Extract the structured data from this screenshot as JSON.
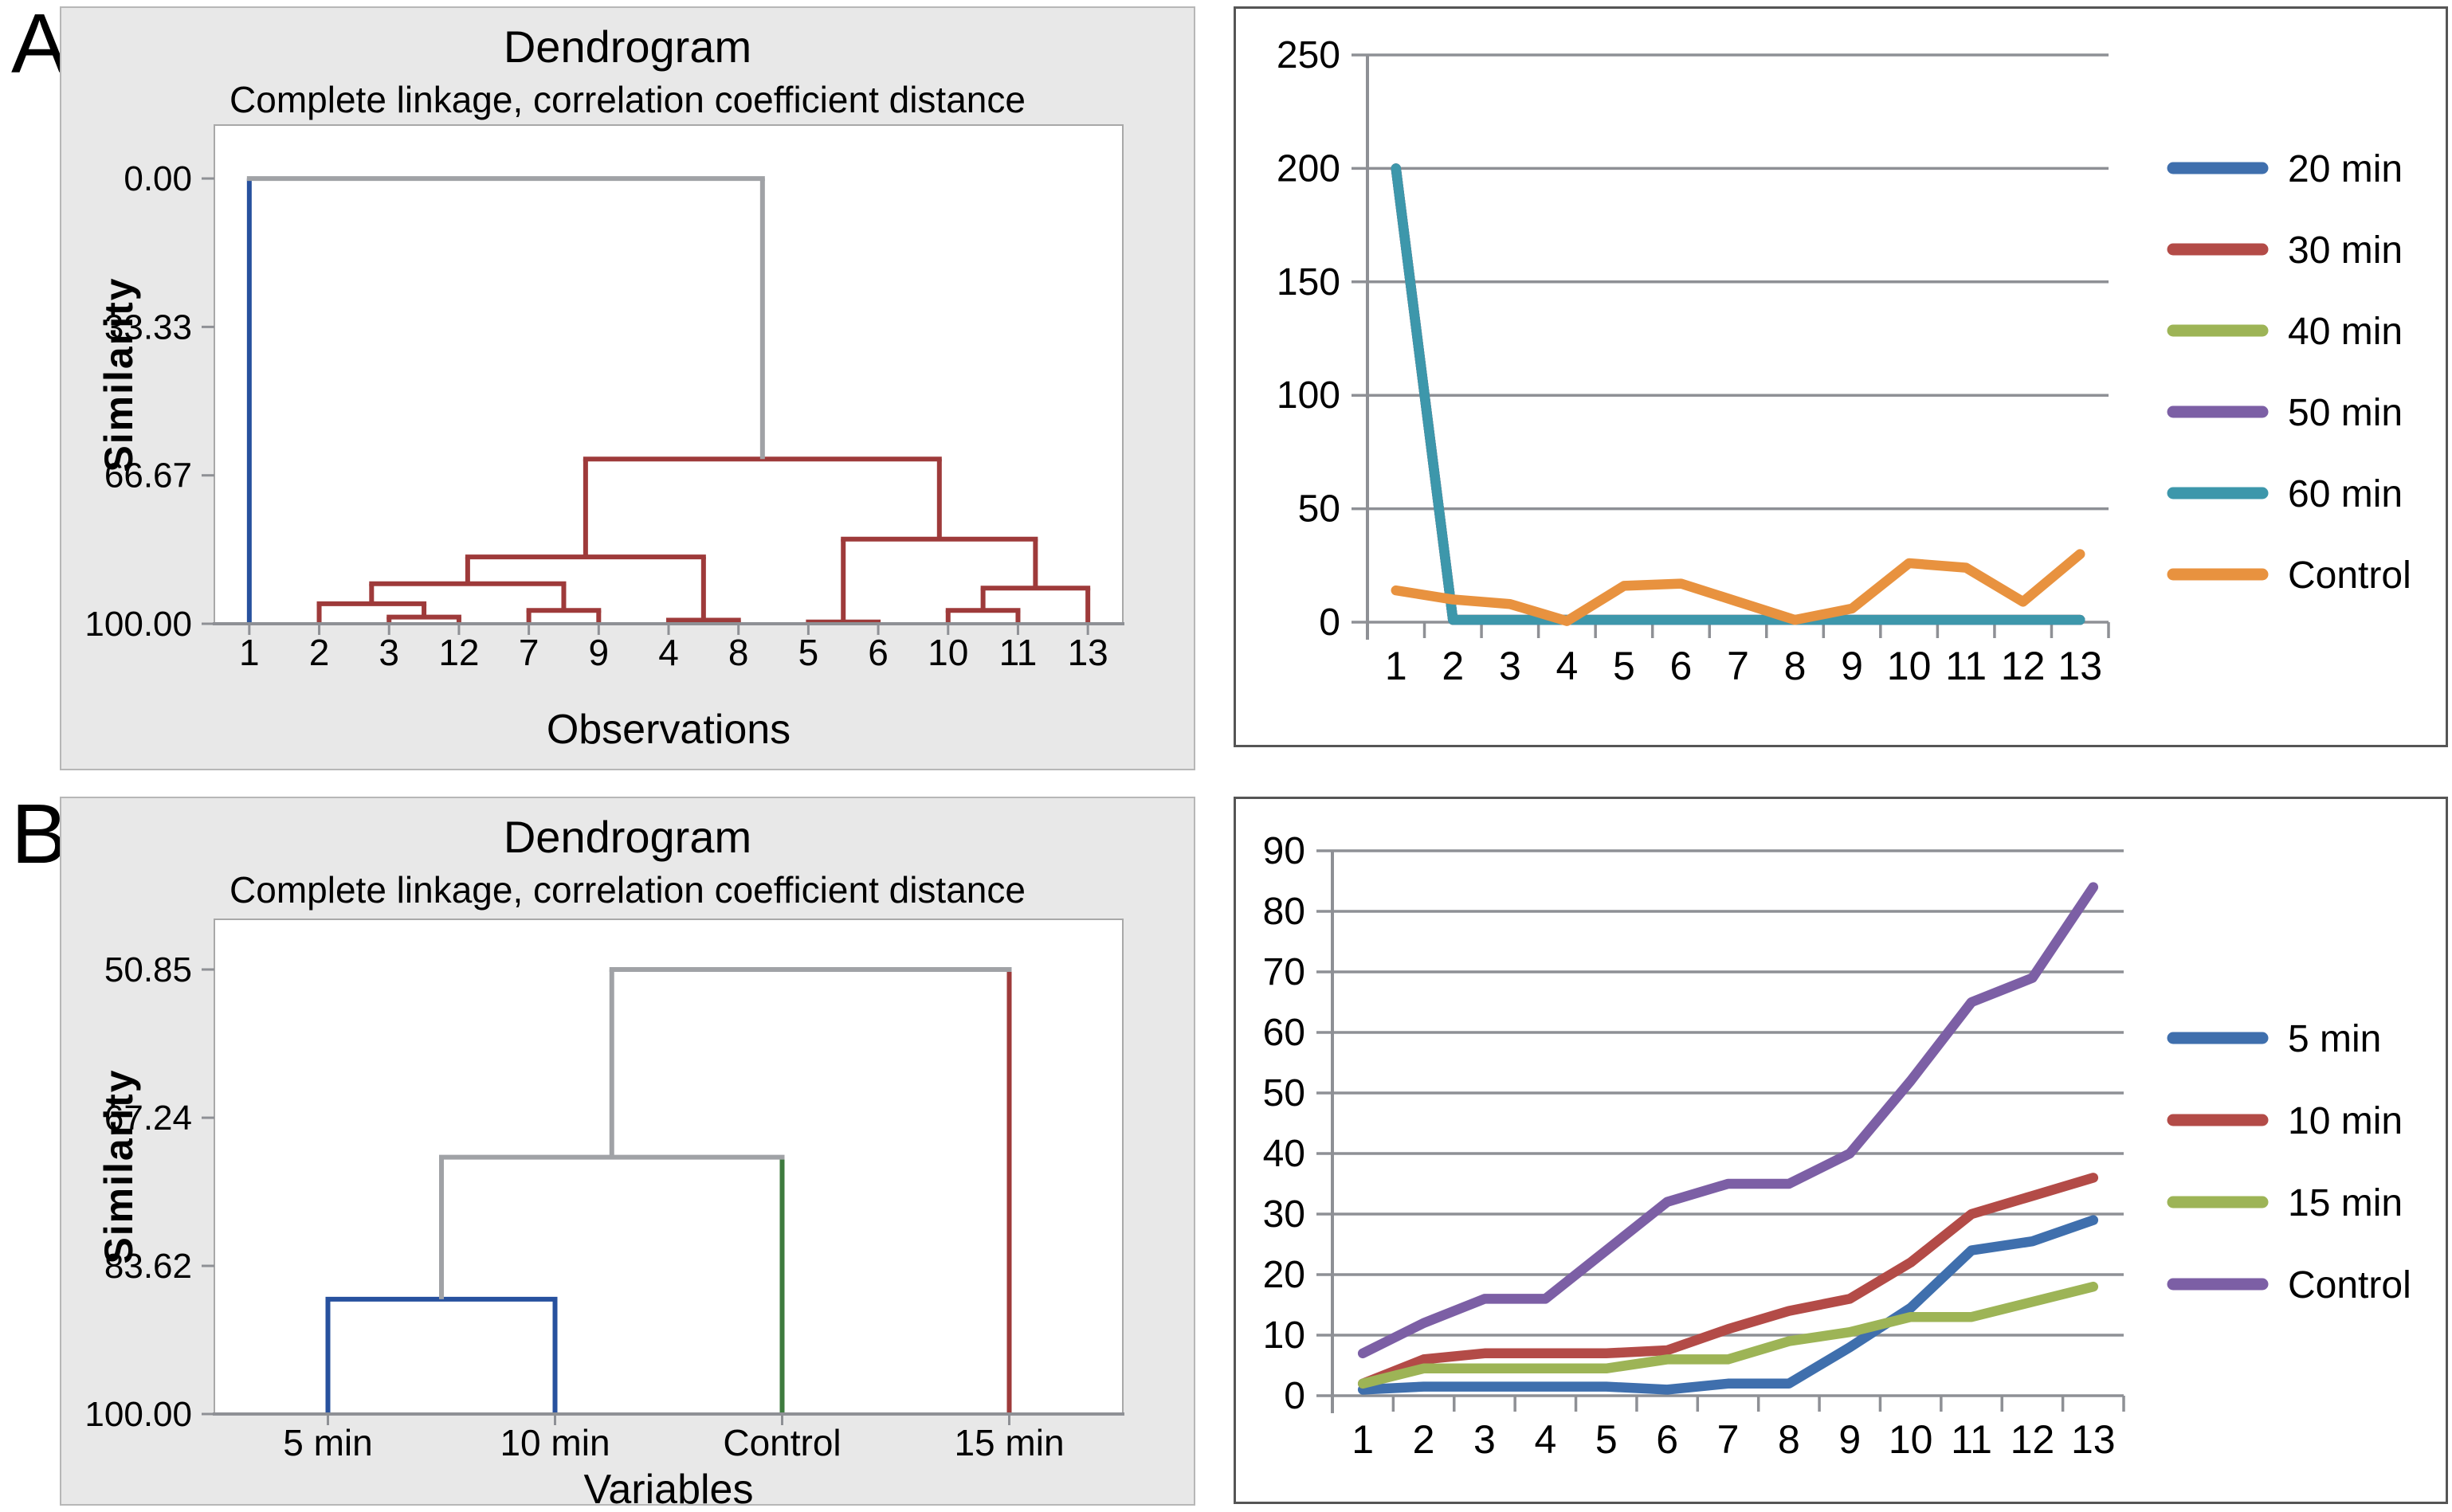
{
  "panels": {
    "a": "A",
    "b": "B"
  },
  "colors": {
    "dendro": {
      "red": "#9e3a3a",
      "blue": "#27519e",
      "gray": "#a0a2a6",
      "green": "#3e7b3e"
    },
    "axis": "#8e9095",
    "grid": "#8e9095",
    "plot_border": "#a8a8a8",
    "panel_bg": "#e8e8e8",
    "panel_border": "#b7b7b7",
    "chart_border": "#555555"
  },
  "chart_data": [
    {
      "type": "dendrogram",
      "panel": "A",
      "title": "Dendrogram",
      "subtitle": "Complete linkage, correlation coefficient distance",
      "ylabel": "Similarity",
      "xlabel": "Observations",
      "ytick_values": [
        0,
        33.33,
        66.67,
        100
      ],
      "ytick_labels": [
        "0.00",
        "33.33",
        "66.67",
        "100.00"
      ],
      "ylim_top": -12,
      "leaves": [
        "1",
        "2",
        "3",
        "12",
        "7",
        "9",
        "4",
        "8",
        "5",
        "6",
        "10",
        "11",
        "13"
      ],
      "merges": [
        {
          "a": "l2",
          "b": "l3",
          "h": 98.5,
          "color": "red"
        },
        {
          "a": "l1",
          "b": "m0",
          "h": 95.5,
          "color": "red"
        },
        {
          "a": "l4",
          "b": "l5",
          "h": 97.0,
          "color": "red"
        },
        {
          "a": "m1",
          "b": "m2",
          "h": 91.0,
          "color": "red"
        },
        {
          "a": "l6",
          "b": "l7",
          "h": 99.2,
          "color": "red"
        },
        {
          "a": "m3",
          "b": "m4",
          "h": 85.0,
          "color": "red"
        },
        {
          "a": "l8",
          "b": "l9",
          "h": 99.6,
          "color": "red"
        },
        {
          "a": "l10",
          "b": "l11",
          "h": 97.0,
          "color": "red"
        },
        {
          "a": "m7",
          "b": "l12",
          "h": 92.0,
          "color": "red"
        },
        {
          "a": "m6",
          "b": "m8",
          "h": 81.0,
          "color": "red"
        },
        {
          "a": "m5",
          "b": "m9",
          "h": 63.0,
          "color": "red"
        },
        {
          "a": "l0",
          "b": "m10",
          "h": 0.0,
          "color": "gray",
          "color_a": "blue",
          "color_b": "gray"
        }
      ]
    },
    {
      "type": "line",
      "panel": "A",
      "x": [
        1,
        2,
        3,
        4,
        5,
        6,
        7,
        8,
        9,
        10,
        11,
        12,
        13
      ],
      "ylim": [
        0,
        250
      ],
      "ytick_step": 50,
      "legend_position": "right",
      "grid": true,
      "series": [
        {
          "name": "20 min",
          "color": "#3f6fad",
          "values": [
            200,
            1,
            1,
            1,
            1,
            1,
            1,
            1,
            1,
            1,
            1,
            1,
            1
          ]
        },
        {
          "name": "30 min",
          "color": "#b34b47",
          "values": [
            200,
            1,
            1,
            1,
            1,
            1,
            1,
            1,
            1,
            1,
            1,
            1,
            1
          ]
        },
        {
          "name": "40 min",
          "color": "#9db456",
          "values": [
            200,
            1,
            1,
            1,
            1,
            1,
            1,
            1,
            1,
            1,
            1,
            1,
            1
          ]
        },
        {
          "name": "50 min",
          "color": "#7c5fa5",
          "values": [
            200,
            1,
            1,
            1,
            1,
            1,
            1,
            1,
            1,
            1,
            1,
            1,
            1
          ]
        },
        {
          "name": "60 min",
          "color": "#3d97ab",
          "values": [
            200,
            1,
            1,
            1,
            1,
            1,
            1,
            1,
            1,
            1,
            1,
            1,
            1
          ]
        },
        {
          "name": "Control",
          "color": "#e8923f",
          "values": [
            14,
            10,
            8,
            0.5,
            16,
            17,
            9,
            1,
            6,
            26,
            24,
            9,
            30
          ]
        }
      ]
    },
    {
      "type": "dendrogram",
      "panel": "B",
      "title": "Dendrogram",
      "subtitle": "Complete linkage, correlation coefficient distance",
      "ylabel": "Similarity",
      "xlabel": "Variables",
      "ytick_values": [
        50.85,
        67.24,
        83.62,
        100
      ],
      "ytick_labels": [
        "50.85",
        "67.24",
        "83.62",
        "100.00"
      ],
      "ylim_top": 45.3,
      "leaves": [
        "5 min",
        "10 min",
        "Control",
        "15 min"
      ],
      "merges": [
        {
          "a": "l0",
          "b": "l1",
          "h": 87.3,
          "color": "blue"
        },
        {
          "a": "m0",
          "b": "l2",
          "h": 71.6,
          "color": "gray",
          "color_a": "gray",
          "color_b": "green"
        },
        {
          "a": "m1",
          "b": "l3",
          "h": 50.85,
          "color": "gray",
          "color_a": "gray",
          "color_b": "red"
        }
      ]
    },
    {
      "type": "line",
      "panel": "B",
      "x": [
        1,
        2,
        3,
        4,
        5,
        6,
        7,
        8,
        9,
        10,
        11,
        12,
        13
      ],
      "ylim": [
        0,
        90
      ],
      "ytick_step": 10,
      "legend_position": "right",
      "grid": true,
      "series": [
        {
          "name": "5 min",
          "color": "#3f6fad",
          "values": [
            1,
            1.5,
            1.5,
            1.5,
            1.5,
            1,
            2,
            2,
            8,
            14.5,
            24,
            25.5,
            29
          ]
        },
        {
          "name": "10 min",
          "color": "#b34b47",
          "values": [
            2,
            6,
            7,
            7,
            7,
            7.5,
            11,
            14,
            16,
            22,
            30,
            33,
            36
          ]
        },
        {
          "name": "15 min",
          "color": "#9db456",
          "values": [
            2,
            4.5,
            4.5,
            4.5,
            4.5,
            6,
            6,
            9,
            10.5,
            13,
            13,
            15.5,
            18
          ]
        },
        {
          "name": "Control",
          "color": "#7c5fa5",
          "values": [
            7,
            12,
            16,
            16,
            24,
            32,
            35,
            35,
            40,
            52,
            65,
            69,
            84
          ]
        }
      ]
    }
  ]
}
